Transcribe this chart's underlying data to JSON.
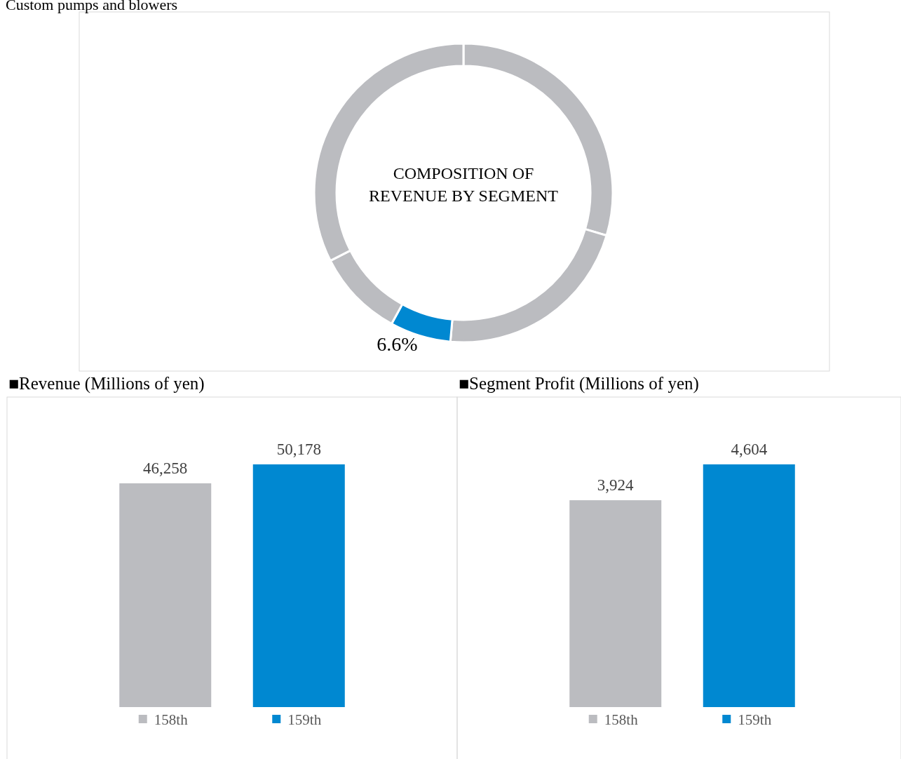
{
  "chart_data": [
    {
      "type": "donut",
      "title": "Custom pumps and blowers",
      "subtitle": "COMPOSITION OF REVENUE BY SEGMENT",
      "categories": [
        null,
        null,
        null,
        null,
        null
      ],
      "values": [
        29.6,
        21.8,
        6.6,
        9.5,
        32.5
      ],
      "colors": [
        "#bbbcc0",
        "#bbbcc0",
        "#0088d1",
        "#bbbcc0",
        "#bbbcc0"
      ],
      "value_labels": [
        null,
        null,
        "6.6%",
        null,
        null
      ]
    },
    {
      "type": "bar",
      "title": "■Revenue (Millions of yen)",
      "categories": [
        "158th",
        "159th"
      ],
      "values": [
        46258,
        50178
      ],
      "colors": [
        "#bbbcc0",
        "#0088d1"
      ],
      "value_labels": [
        "46,258",
        "50,178"
      ]
    },
    {
      "type": "bar",
      "title": "■Segment Profit (Millions of yen)",
      "categories": [
        "158th",
        "159th"
      ],
      "values": [
        3924,
        4604
      ],
      "colors": [
        "#bbbcc0",
        "#0088d1"
      ],
      "value_labels": [
        "3,924",
        "4,604"
      ]
    }
  ]
}
